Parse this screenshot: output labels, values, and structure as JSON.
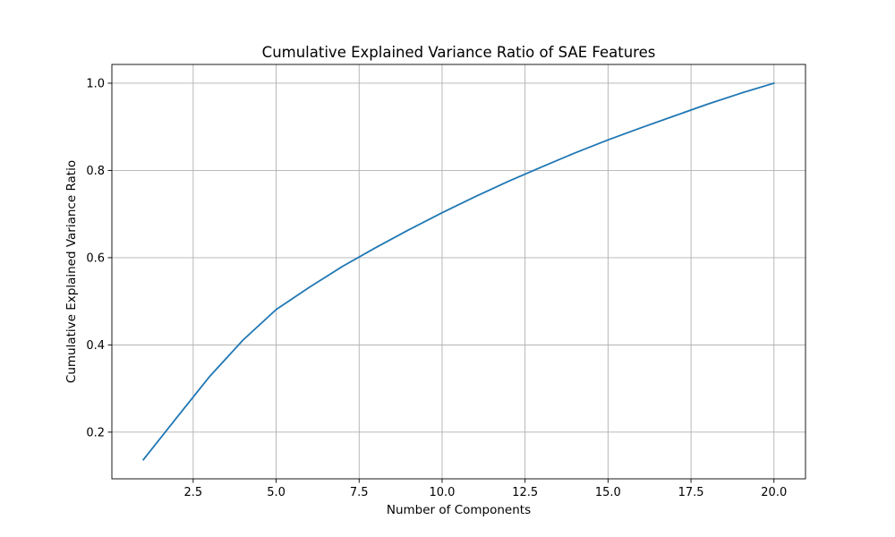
{
  "chart_data": {
    "type": "line",
    "title": "Cumulative Explained Variance Ratio of SAE Features",
    "xlabel": "Number of Components",
    "ylabel": "Cumulative Explained Variance Ratio",
    "xlim": [
      0.05,
      20.95
    ],
    "ylim": [
      0.093,
      1.043
    ],
    "x_ticks": [
      2.5,
      5.0,
      7.5,
      10.0,
      12.5,
      15.0,
      17.5,
      20.0
    ],
    "x_tick_labels": [
      "2.5",
      "5.0",
      "7.5",
      "10.0",
      "12.5",
      "15.0",
      "17.5",
      "20.0"
    ],
    "y_ticks": [
      0.2,
      0.4,
      0.6,
      0.8,
      1.0
    ],
    "y_tick_labels": [
      "0.2",
      "0.4",
      "0.6",
      "0.8",
      "1.0"
    ],
    "grid": true,
    "series": [
      {
        "color": "#1f77b4",
        "x": [
          1,
          2,
          3,
          4,
          5,
          6,
          7,
          8,
          9,
          10,
          11,
          12,
          13,
          14,
          15,
          16,
          17,
          18,
          19,
          20
        ],
        "y": [
          0.137,
          0.233,
          0.328,
          0.411,
          0.481,
          0.532,
          0.58,
          0.623,
          0.664,
          0.703,
          0.74,
          0.775,
          0.808,
          0.84,
          0.87,
          0.898,
          0.925,
          0.952,
          0.977,
          1.0
        ]
      }
    ]
  }
}
